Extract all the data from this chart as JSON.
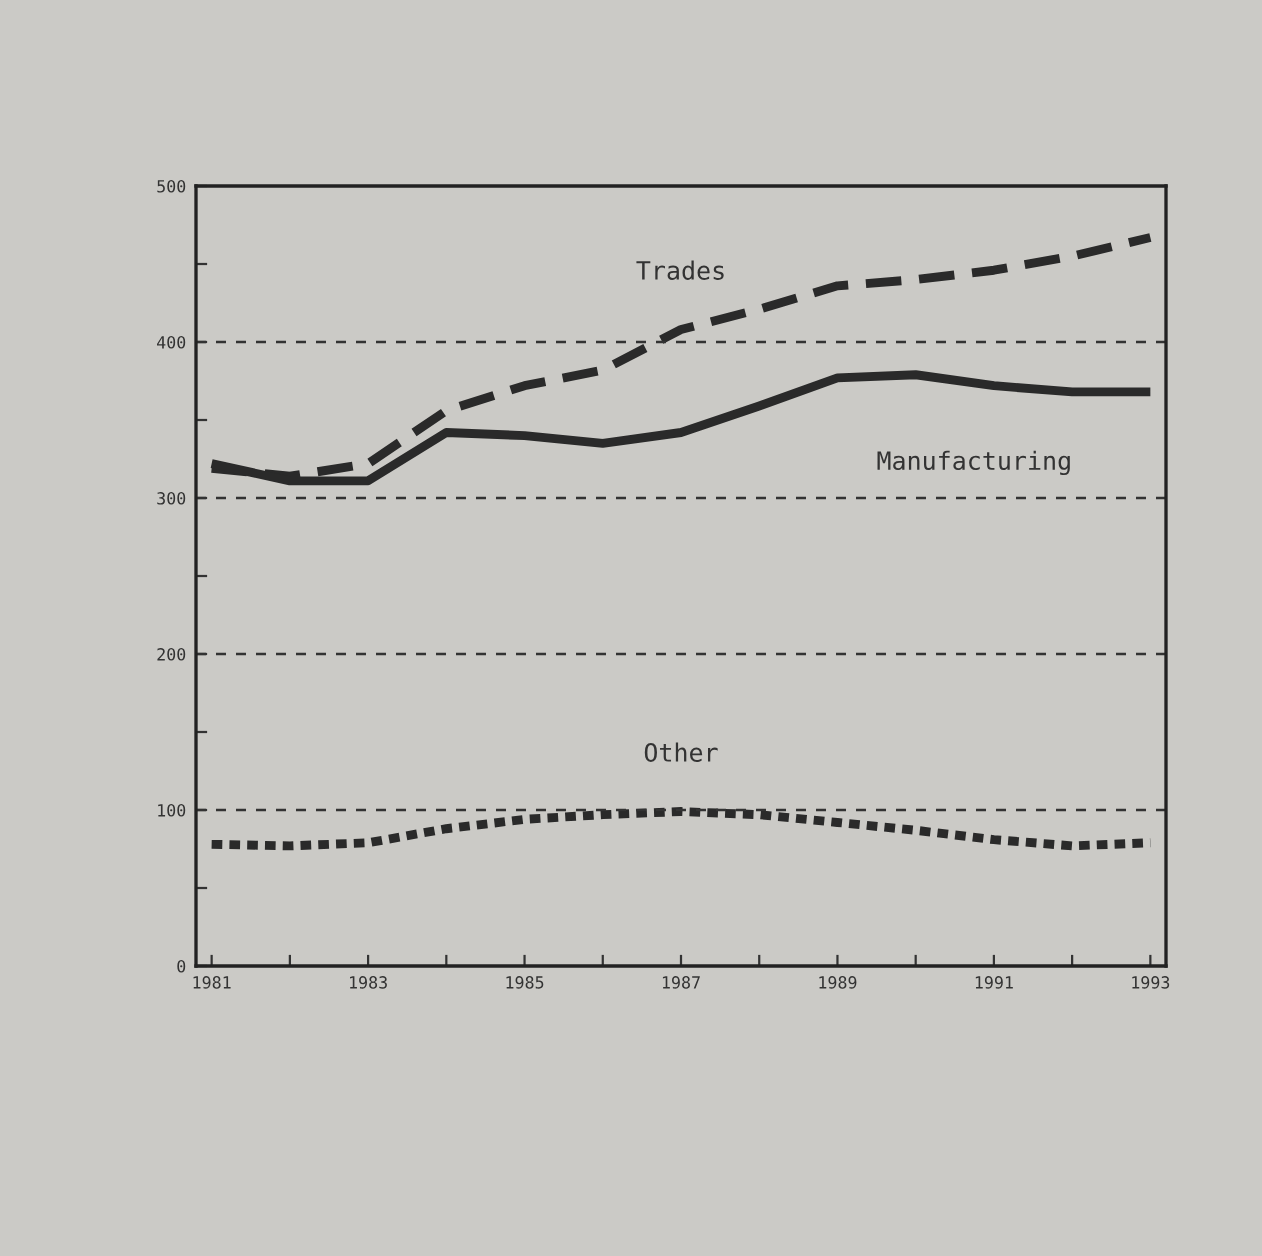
{
  "chart_data": {
    "type": "line",
    "x": [
      1981,
      1982,
      1983,
      1984,
      1985,
      1986,
      1987,
      1988,
      1989,
      1990,
      1991,
      1992,
      1993
    ],
    "series": [
      {
        "name": "Trades",
        "color": "#2a2a2a",
        "line_style": "dashed",
        "values": [
          319,
          314,
          322,
          356,
          372,
          382,
          408,
          421,
          436,
          440,
          446,
          455,
          467
        ]
      },
      {
        "name": "Manufacturing",
        "color": "#2a2a2a",
        "line_style": "solid",
        "values": [
          322,
          311,
          311,
          342,
          340,
          335,
          342,
          359,
          377,
          379,
          372,
          368,
          368
        ]
      },
      {
        "name": "Other",
        "color": "#2a2a2a",
        "line_style": "dotted",
        "values": [
          78,
          77,
          79,
          88,
          94,
          97,
          99,
          97,
          92,
          87,
          81,
          77,
          79
        ]
      }
    ],
    "xlim": [
      1980.8,
      1993.2
    ],
    "ylim": [
      0,
      500
    ],
    "xticks": [
      1981,
      {
        "value": 1982,
        "label": null
      },
      1983,
      {
        "value": 1984,
        "label": null
      },
      1985,
      {
        "value": 1986,
        "label": null
      },
      1987,
      {
        "value": 1988,
        "label": null
      },
      1989,
      {
        "value": 1990,
        "label": null
      },
      1991,
      {
        "value": 1992,
        "label": null
      },
      1993
    ],
    "yticks": [
      0,
      {
        "value": 50,
        "label": null
      },
      100,
      {
        "value": 150,
        "label": null
      },
      200,
      {
        "value": 250,
        "label": null
      },
      300,
      {
        "value": 350,
        "label": null
      },
      400,
      {
        "value": 450,
        "label": null
      },
      500
    ],
    "ref_lines": [
      {
        "axis": "y",
        "value": 100,
        "line_style": "dashed"
      },
      {
        "axis": "y",
        "value": 200,
        "line_style": "dashed"
      },
      {
        "axis": "y",
        "value": 300,
        "line_style": "dashed"
      },
      {
        "axis": "y",
        "value": 400,
        "line_style": "dashed"
      }
    ],
    "legend": false,
    "grid": false
  }
}
